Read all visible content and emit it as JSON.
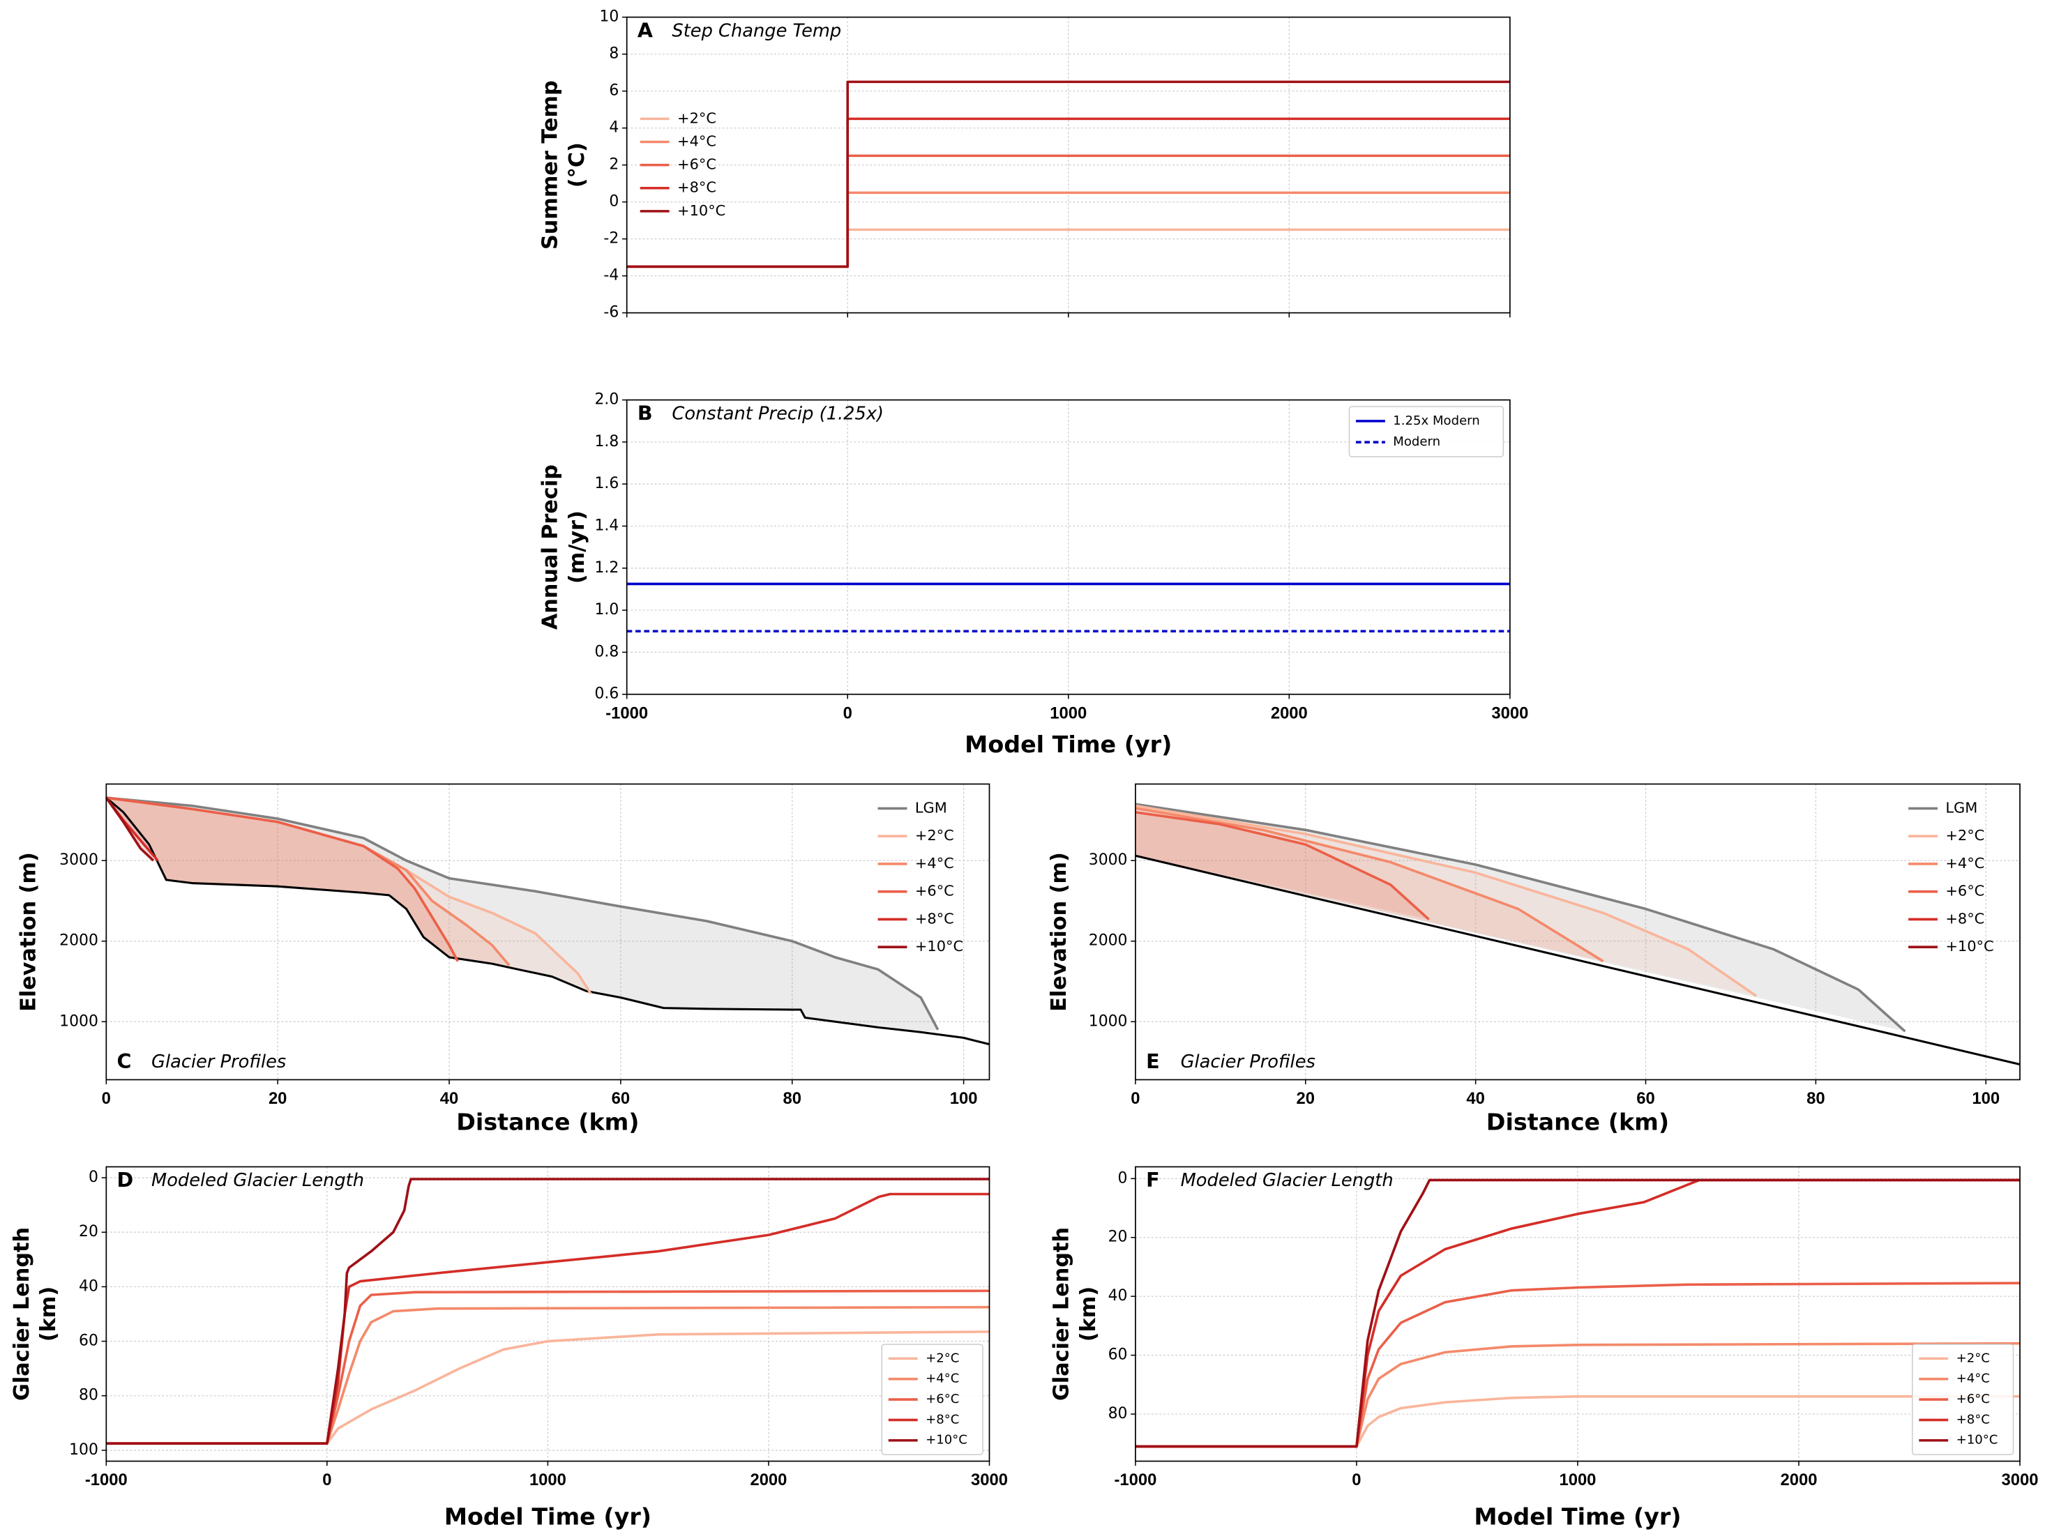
{
  "chart_data": [
    {
      "type": "line",
      "panel": "A",
      "title": "Step Change Temp",
      "ylabel": [
        "Summer Temp",
        "(°C)"
      ],
      "xlim": [
        -1000,
        3000
      ],
      "xticks": [
        -1000,
        0,
        1000,
        2000,
        3000
      ],
      "ylim": [
        -6,
        10
      ],
      "yticks": [
        -6,
        -4,
        -2,
        0,
        2,
        4,
        6,
        8,
        10
      ],
      "grid": true,
      "legend": "center left",
      "legend_frame": false,
      "series": [
        {
          "name": "+2°C",
          "color": "#f9b59b",
          "x": [
            -1000,
            0,
            0,
            3000
          ],
          "values": [
            -3.5,
            -3.5,
            -1.5,
            -1.5
          ]
        },
        {
          "name": "+4°C",
          "color": "#f4896a",
          "x": [
            -1000,
            0,
            0,
            3000
          ],
          "values": [
            -3.5,
            -3.5,
            0.5,
            0.5
          ]
        },
        {
          "name": "+6°C",
          "color": "#eb5f48",
          "x": [
            -1000,
            0,
            0,
            3000
          ],
          "values": [
            -3.5,
            -3.5,
            2.5,
            2.5
          ]
        },
        {
          "name": "+8°C",
          "color": "#d42d27",
          "x": [
            -1000,
            0,
            0,
            3000
          ],
          "values": [
            -3.5,
            -3.5,
            4.5,
            4.5
          ]
        },
        {
          "name": "+10°C",
          "color": "#9f1016",
          "x": [
            -1000,
            0,
            0,
            3000
          ],
          "values": [
            -3.5,
            -3.5,
            6.5,
            6.5
          ]
        }
      ]
    },
    {
      "type": "line",
      "panel": "B",
      "title": "Constant Precip (1.25x)",
      "ylabel": [
        "Annual Precip",
        "(m/yr)"
      ],
      "xlabel": "Model Time (yr)",
      "xlim": [
        -1000,
        3000
      ],
      "xticks": [
        -1000,
        0,
        1000,
        2000,
        3000
      ],
      "ylim": [
        0.6,
        2.0
      ],
      "yticks": [
        0.6,
        0.8,
        {
          "value": 1,
          "label": "1.0"
        },
        1.2,
        1.4,
        1.6,
        1.8,
        {
          "value": 2,
          "label": "2.0"
        }
      ],
      "grid": true,
      "legend": "upper right",
      "legend_frame": true,
      "series": [
        {
          "name": "1.25x Modern",
          "color": "#0000cc",
          "x": [
            -1000,
            3000
          ],
          "values": [
            1.125,
            1.125
          ]
        },
        {
          "name": "Modern",
          "color": "#0000cc",
          "linestyle": "dashed",
          "x": [
            -1000,
            3000
          ],
          "values": [
            0.9,
            0.9
          ]
        }
      ]
    },
    {
      "type": "line",
      "panel": "C",
      "title": "Glacier Profiles",
      "ylabel": [
        "Elevation (m)"
      ],
      "xlabel": "Distance (km)",
      "xlim": [
        0,
        103
      ],
      "xticks": [
        0,
        20,
        40,
        60,
        80,
        100
      ],
      "ylim": [
        280,
        3950
      ],
      "yticks": [
        1000,
        2000,
        3000
      ],
      "grid": true,
      "legend": "upper right",
      "legend_frame": false,
      "series": [
        {
          "color": "#000000",
          "x": [
            0,
            2,
            5,
            7,
            10,
            20,
            30,
            33,
            35,
            37,
            40,
            45,
            48,
            52,
            56,
            60,
            65,
            70,
            80,
            81,
            81.5,
            90,
            95,
            100,
            103
          ],
          "values": [
            3780,
            3600,
            3200,
            2760,
            2720,
            2680,
            2600,
            2570,
            2400,
            2050,
            1800,
            1720,
            1650,
            1560,
            1380,
            1300,
            1170,
            1160,
            1150,
            1150,
            1050,
            930,
            870,
            800,
            720
          ]
        },
        {
          "name": "LGM",
          "color": "#808080",
          "x": [
            0,
            10,
            20,
            30,
            35,
            40,
            50,
            60,
            70,
            80,
            85,
            90,
            95,
            97
          ],
          "values": [
            3780,
            3680,
            3520,
            3280,
            3000,
            2780,
            2620,
            2430,
            2250,
            2000,
            1800,
            1650,
            1300,
            900
          ]
        },
        {
          "name": "+2°C",
          "color": "#f9b59b",
          "x": [
            0,
            10,
            20,
            30,
            35,
            40,
            45,
            50,
            55,
            56.5
          ],
          "values": [
            3780,
            3640,
            3480,
            3180,
            2880,
            2550,
            2350,
            2100,
            1600,
            1350
          ]
        },
        {
          "name": "+4°C",
          "color": "#f4896a",
          "x": [
            0,
            10,
            20,
            30,
            35,
            38,
            42,
            45,
            47
          ],
          "values": [
            3780,
            3640,
            3480,
            3180,
            2880,
            2500,
            2200,
            1950,
            1700
          ]
        },
        {
          "name": "+6°C",
          "color": "#eb5f48",
          "x": [
            0,
            10,
            20,
            30,
            34,
            36,
            38,
            40,
            41
          ],
          "values": [
            3780,
            3640,
            3480,
            3180,
            2900,
            2650,
            2300,
            1950,
            1750
          ]
        },
        {
          "name": "+8°C",
          "color": "#d42d27",
          "x": [
            0,
            2,
            4,
            6
          ],
          "values": [
            3780,
            3500,
            3250,
            3000
          ]
        },
        {
          "name": "+10°C",
          "color": "#9f1016",
          "x": [
            0,
            2,
            4,
            5.5
          ],
          "values": [
            3780,
            3480,
            3150,
            3000
          ]
        }
      ]
    },
    {
      "type": "line",
      "panel": "E",
      "title": "Glacier Profiles",
      "ylabel": [
        "Elevation (m)"
      ],
      "xlabel": "Distance (km)",
      "xlim": [
        0,
        104
      ],
      "xticks": [
        0,
        20,
        40,
        60,
        80,
        100
      ],
      "ylim": [
        280,
        3950
      ],
      "yticks": [
        1000,
        2000,
        3000
      ],
      "grid": true,
      "legend": "upper right",
      "legend_frame": false,
      "series": [
        {
          "color": "#000000",
          "x": [
            0,
            104
          ],
          "values": [
            3060,
            470
          ]
        },
        {
          "name": "LGM",
          "color": "#808080",
          "x": [
            0,
            20,
            40,
            60,
            75,
            85,
            90.5
          ],
          "values": [
            3700,
            3380,
            2950,
            2400,
            1900,
            1400,
            880
          ]
        },
        {
          "name": "+2°C",
          "color": "#f9b59b",
          "x": [
            0,
            20,
            40,
            55,
            65,
            73
          ],
          "values": [
            3680,
            3330,
            2850,
            2350,
            1900,
            1320
          ]
        },
        {
          "name": "+4°C",
          "color": "#f4896a",
          "x": [
            0,
            15,
            30,
            45,
            55
          ],
          "values": [
            3650,
            3380,
            2980,
            2400,
            1750
          ]
        },
        {
          "name": "+6°C",
          "color": "#eb5f48",
          "x": [
            0,
            10,
            20,
            30,
            34.5
          ],
          "values": [
            3600,
            3450,
            3200,
            2700,
            2270
          ]
        },
        {
          "name": "+8°C",
          "color": "#d42d27",
          "x": [],
          "values": []
        },
        {
          "name": "+10°C",
          "color": "#9f1016",
          "x": [],
          "values": []
        }
      ]
    },
    {
      "type": "line",
      "panel": "D",
      "title": "Modeled Glacier Length",
      "ylabel": [
        "Glacier Length",
        "(km)"
      ],
      "xlabel": "Model Time (yr)",
      "xlim": [
        -1000,
        3000
      ],
      "xticks": [
        -1000,
        0,
        1000,
        2000,
        3000
      ],
      "ylim": [
        104,
        -4
      ],
      "yticks": [
        0,
        20,
        40,
        60,
        80,
        100
      ],
      "grid": true,
      "legend": "lower right",
      "legend_frame": true,
      "series": [
        {
          "name": "+2°C",
          "color": "#f9b59b",
          "x": [
            -1000,
            0,
            50,
            200,
            400,
            600,
            800,
            1000,
            1500,
            3000
          ],
          "values": [
            97.5,
            97.5,
            92,
            85,
            78,
            70,
            63,
            60,
            57.5,
            56.5
          ]
        },
        {
          "name": "+4°C",
          "color": "#f4896a",
          "x": [
            -1000,
            0,
            50,
            100,
            150,
            200,
            300,
            500,
            3000
          ],
          "values": [
            97.5,
            97.5,
            85,
            72,
            60,
            53,
            49,
            48,
            47.5
          ]
        },
        {
          "name": "+6°C",
          "color": "#eb5f48",
          "x": [
            -1000,
            0,
            50,
            100,
            150,
            200,
            400,
            3000
          ],
          "values": [
            97.5,
            97.5,
            80,
            60,
            47,
            43,
            42,
            41.5
          ]
        },
        {
          "name": "+8°C",
          "color": "#d42d27",
          "x": [
            -1000,
            0,
            50,
            80,
            100,
            150,
            500,
            1000,
            1500,
            2000,
            2300,
            2500,
            2550,
            3000
          ],
          "values": [
            97.5,
            97.5,
            75,
            50,
            40,
            38,
            35,
            31,
            27,
            21,
            15,
            7,
            6,
            6
          ]
        },
        {
          "name": "+10°C",
          "color": "#9f1016",
          "x": [
            -1000,
            0,
            50,
            80,
            90,
            100,
            200,
            300,
            350,
            370,
            380,
            3000
          ],
          "values": [
            97.5,
            97.5,
            70,
            50,
            35,
            33,
            27,
            20,
            12,
            3,
            0.5,
            0.5
          ]
        }
      ]
    },
    {
      "type": "line",
      "panel": "F",
      "title": "Modeled Glacier Length",
      "ylabel": [
        "Glacier Length",
        "(km)"
      ],
      "xlabel": "Model Time (yr)",
      "xlim": [
        -1000,
        3000
      ],
      "xticks": [
        -1000,
        0,
        1000,
        2000,
        3000
      ],
      "ylim": [
        96,
        -4
      ],
      "yticks": [
        0,
        20,
        40,
        60,
        80
      ],
      "grid": true,
      "legend": "lower right",
      "legend_frame": true,
      "series": [
        {
          "name": "+2°C",
          "color": "#f9b59b",
          "x": [
            -1000,
            0,
            50,
            100,
            200,
            400,
            700,
            1000,
            3000
          ],
          "values": [
            91,
            91,
            84,
            81,
            78,
            76,
            74.5,
            74,
            74
          ]
        },
        {
          "name": "+4°C",
          "color": "#f4896a",
          "x": [
            -1000,
            0,
            50,
            100,
            200,
            400,
            700,
            1000,
            3000
          ],
          "values": [
            91,
            91,
            75,
            68,
            63,
            59,
            57,
            56.5,
            56
          ]
        },
        {
          "name": "+6°C",
          "color": "#eb5f48",
          "x": [
            -1000,
            0,
            50,
            100,
            200,
            400,
            700,
            1000,
            1500,
            3000
          ],
          "values": [
            91,
            91,
            68,
            58,
            49,
            42,
            38,
            37,
            36,
            35.5
          ]
        },
        {
          "name": "+8°C",
          "color": "#d42d27",
          "x": [
            -1000,
            0,
            50,
            100,
            200,
            400,
            700,
            1000,
            1300,
            1550,
            3000
          ],
          "values": [
            91,
            91,
            60,
            45,
            33,
            24,
            17,
            12,
            8,
            0.5,
            0.5
          ]
        },
        {
          "name": "+10°C",
          "color": "#9f1016",
          "x": [
            -1000,
            0,
            50,
            100,
            200,
            300,
            330,
            3000
          ],
          "values": [
            91,
            91,
            55,
            38,
            18,
            5,
            0.5,
            0.5
          ]
        }
      ]
    }
  ]
}
